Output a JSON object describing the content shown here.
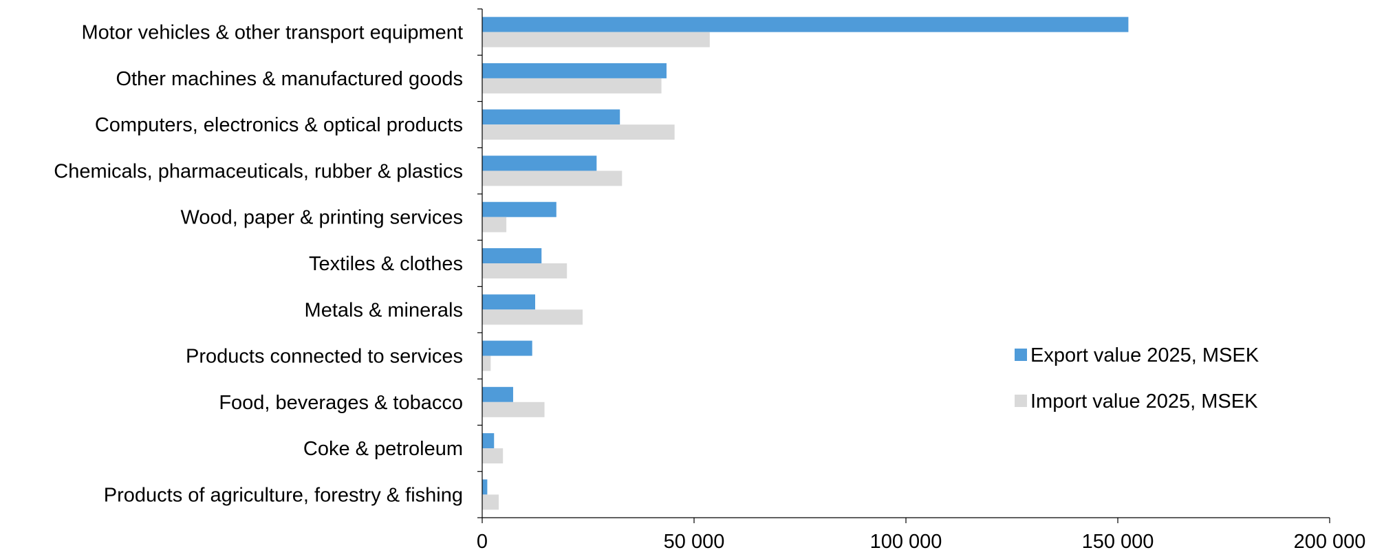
{
  "chart_data": {
    "type": "bar",
    "orientation": "horizontal",
    "categories": [
      "Motor vehicles & other transport equipment",
      "Other machines & manufactured goods",
      "Computers, electronics & optical products",
      "Chemicals, pharmaceuticals, rubber & plastics",
      "Wood, paper & printing services",
      "Textiles & clothes",
      "Metals & minerals ",
      "Products connected to services",
      "Food, beverages & tobacco",
      "Coke & petroleum",
      "Products of agriculture, forestry & fishing"
    ],
    "series": [
      {
        "name": "Export value 2025, MSEK",
        "color": "#4F9BD9",
        "values": [
          152500,
          43500,
          32500,
          27000,
          17500,
          14000,
          12500,
          11800,
          7300,
          2800,
          1200
        ]
      },
      {
        "name": "Import value 2025, MSEK",
        "color": "#D9D9D9",
        "values": [
          53700,
          42300,
          45400,
          33000,
          5700,
          20000,
          23700,
          2000,
          14700,
          4900,
          3900
        ]
      }
    ],
    "xlim": [
      0,
      200000
    ],
    "x_ticks": [
      {
        "value": 0,
        "label": "0"
      },
      {
        "value": 50000,
        "label": "50 000"
      },
      {
        "value": 100000,
        "label": "100 000"
      },
      {
        "value": 150000,
        "label": "150 000"
      },
      {
        "value": 200000,
        "label": "200 000"
      }
    ],
    "title": "",
    "xlabel": "",
    "ylabel": "",
    "grid": false,
    "legend_position": "right"
  }
}
